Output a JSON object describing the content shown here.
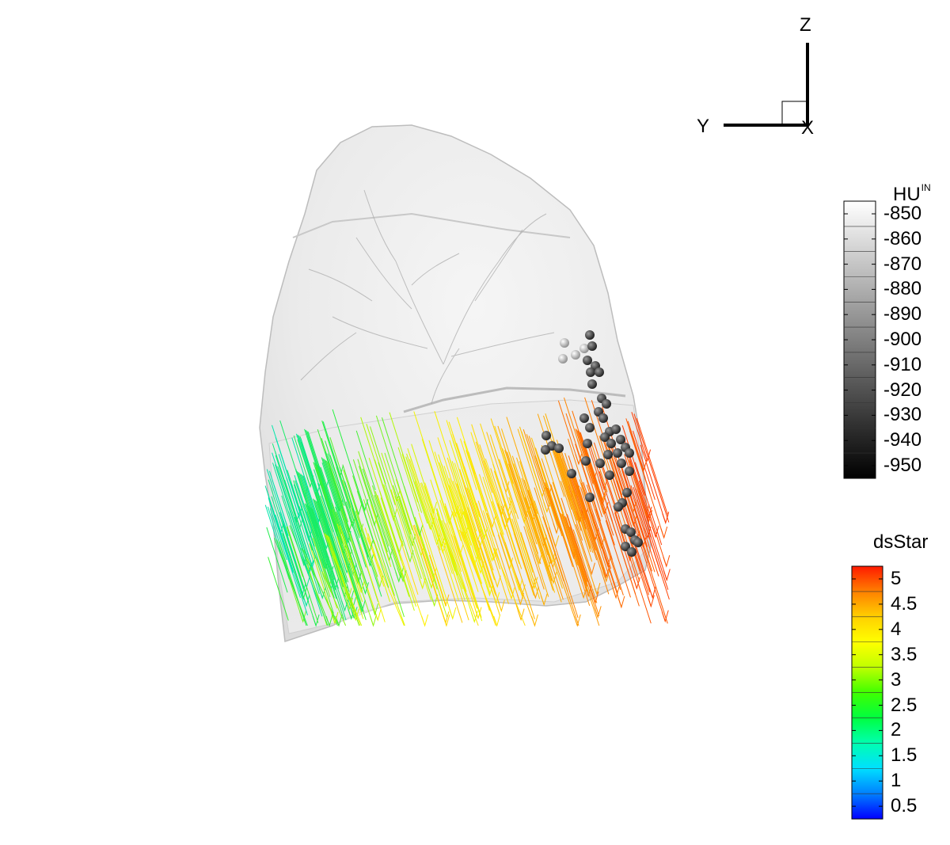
{
  "triad": {
    "z_label": "Z",
    "y_label": "Y",
    "x_label": "X"
  },
  "legend_hu": {
    "title": "HU",
    "title_superscript": "IN",
    "labels": [
      "-850",
      "-860",
      "-870",
      "-880",
      "-890",
      "-900",
      "-910",
      "-920",
      "-930",
      "-940",
      "-950"
    ],
    "colors": [
      "#ffffff",
      "#e6e6e6",
      "#cccccc",
      "#b3b3b3",
      "#999999",
      "#808080",
      "#666666",
      "#4d4d4d",
      "#333333",
      "#1a1a1a",
      "#000000"
    ]
  },
  "legend_ds": {
    "title": "dsStar",
    "labels": [
      "5",
      "4.5",
      "4",
      "3.5",
      "3",
      "2.5",
      "2",
      "1.5",
      "1",
      "0.5"
    ],
    "colors": [
      "#ff1a00",
      "#ff8000",
      "#ffd000",
      "#ffff00",
      "#c0ff00",
      "#40ff00",
      "#00ff40",
      "#00ffb0",
      "#00e0ff",
      "#0080ff",
      "#0000ff"
    ]
  }
}
